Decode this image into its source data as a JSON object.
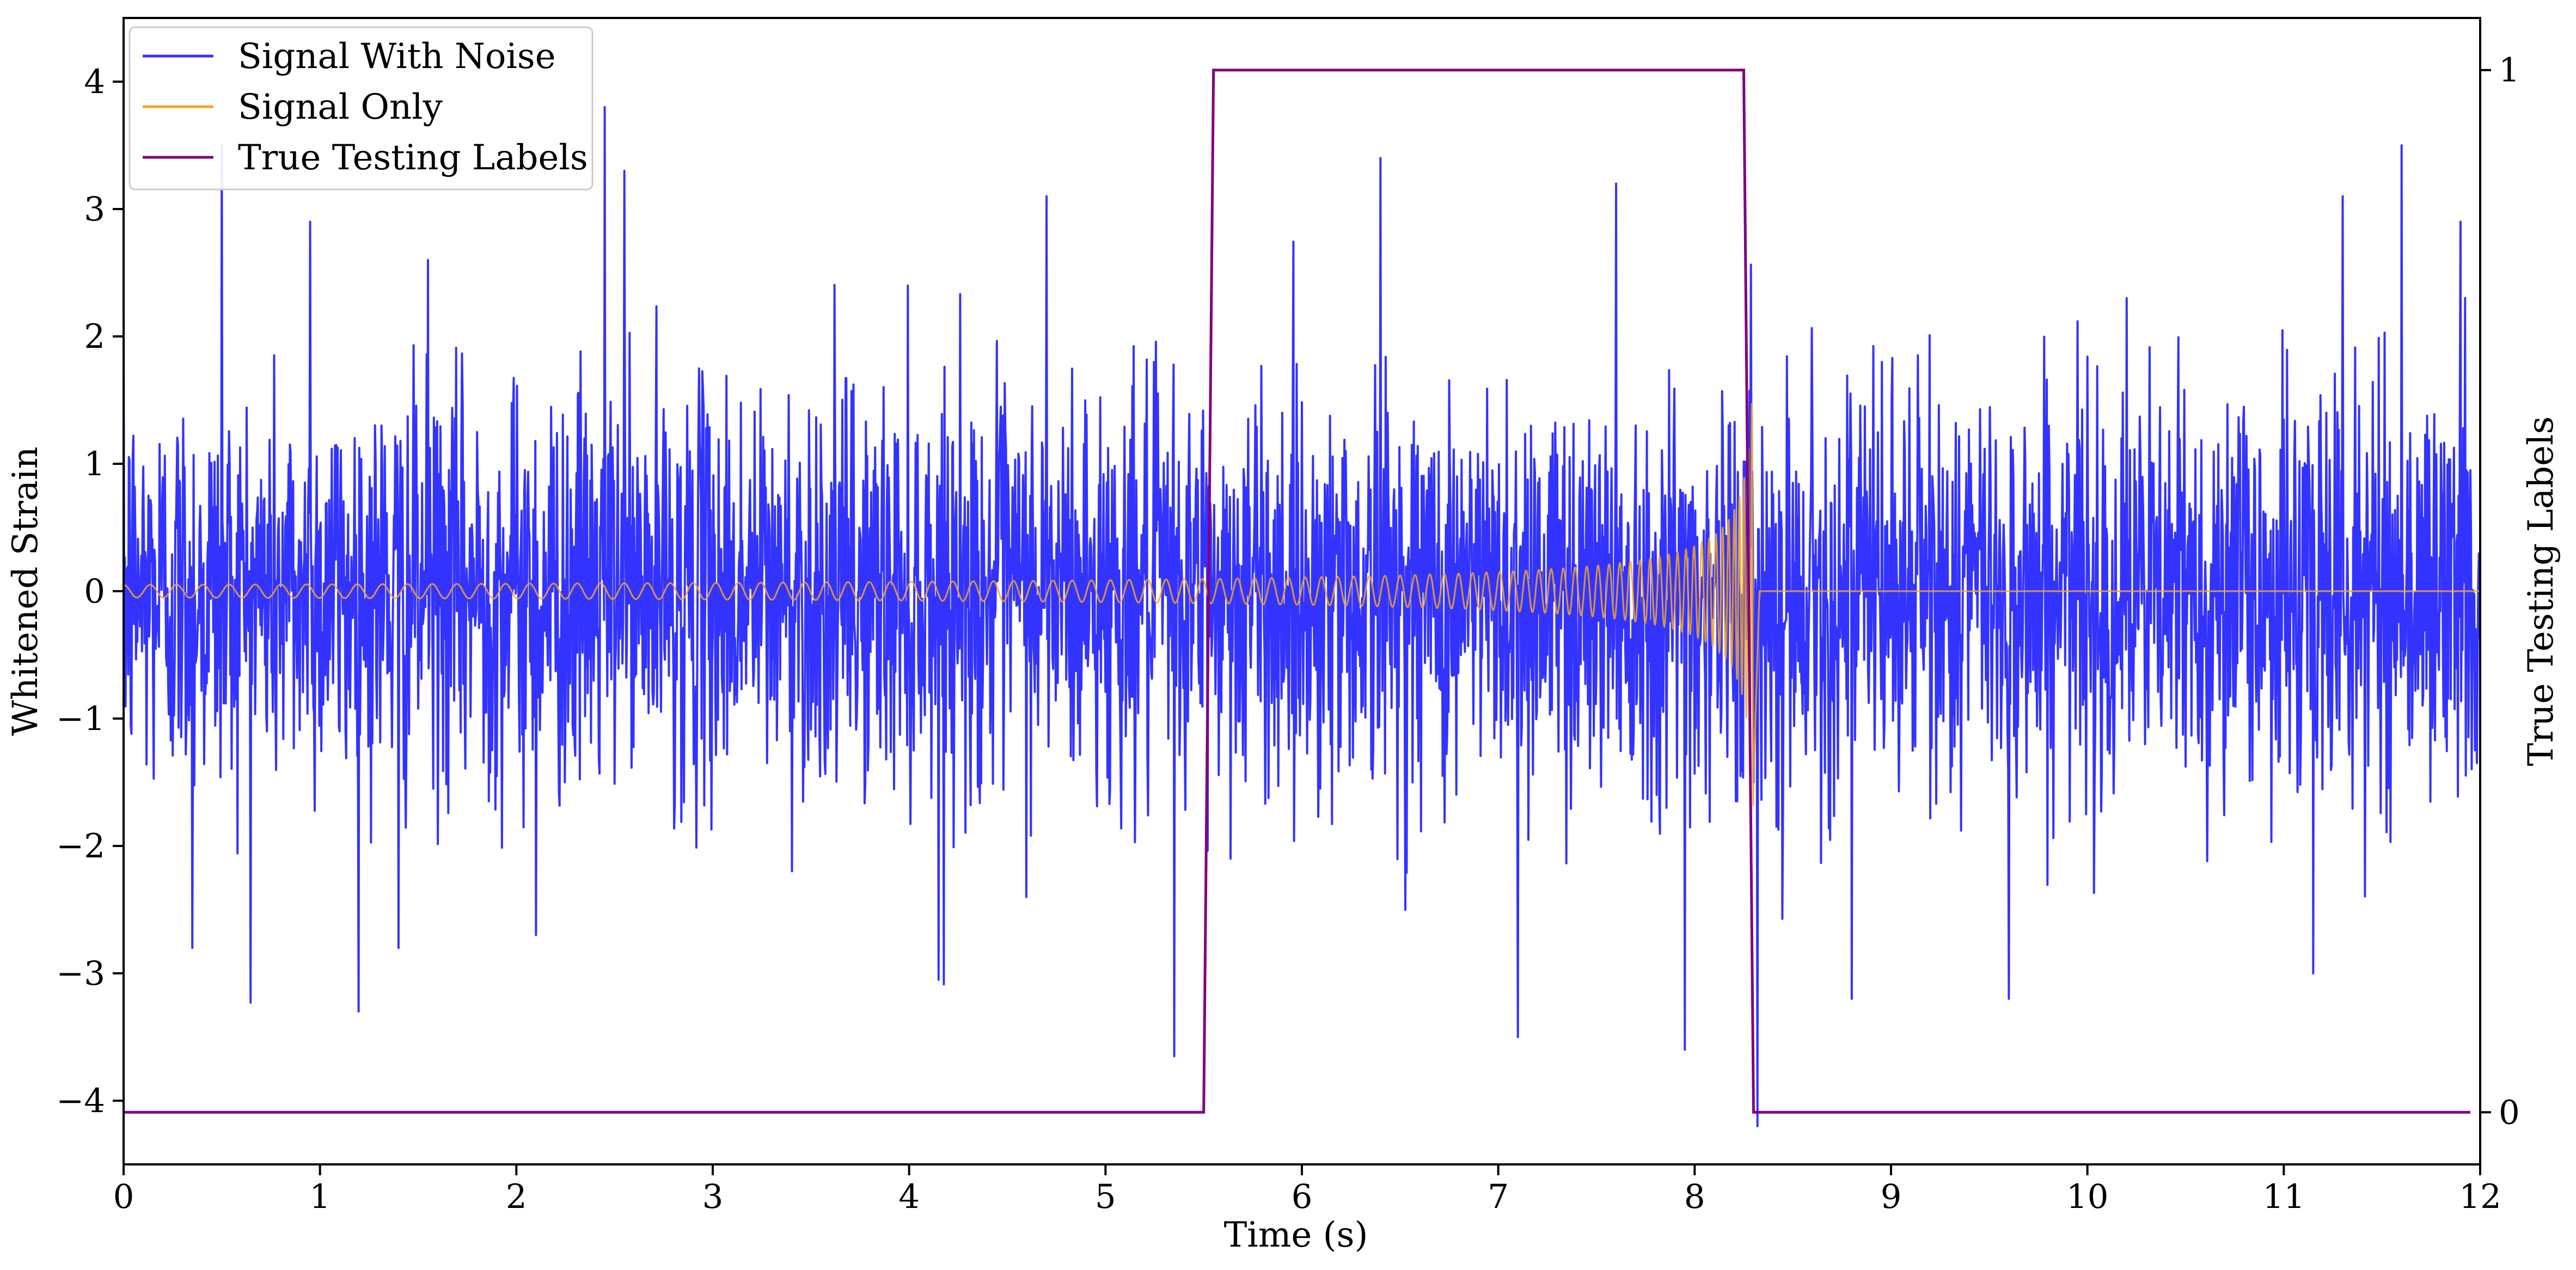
{
  "chart_data": {
    "type": "line",
    "title": "",
    "xlabel": "Time (s)",
    "ylabel": "Whitened Strain",
    "y2label": "True Testing Labels",
    "xlim": [
      0,
      12
    ],
    "ylim": [
      -4.5,
      4.5
    ],
    "y2lim": [
      -0.05,
      1.05
    ],
    "x_ticks": [
      "0",
      "1",
      "2",
      "3",
      "4",
      "5",
      "6",
      "7",
      "8",
      "9",
      "10",
      "11",
      "12"
    ],
    "y_ticks": [
      "4",
      "3",
      "2",
      "1",
      "0",
      "−1",
      "−2",
      "−3",
      "−4"
    ],
    "y_tick_values": [
      4,
      3,
      2,
      1,
      0,
      -1,
      -2,
      -3,
      -4
    ],
    "y2_ticks": [
      "1",
      "0"
    ],
    "y2_tick_values": [
      1,
      0
    ],
    "grid": false,
    "legend_position": "top-left",
    "series": [
      {
        "name": "Signal With Noise",
        "color": "#3333ff",
        "axis": "left",
        "kind": "noise",
        "noise_std": 0.8,
        "x_range": [
          0,
          12
        ],
        "peaks": [
          {
            "x": 0.5,
            "y": 3.5
          },
          {
            "x": 0.95,
            "y": 2.9
          },
          {
            "x": 1.55,
            "y": 2.6
          },
          {
            "x": 2.45,
            "y": 3.8
          },
          {
            "x": 2.55,
            "y": 3.3
          },
          {
            "x": 4.7,
            "y": 3.1
          },
          {
            "x": 6.4,
            "y": 3.4
          },
          {
            "x": 7.6,
            "y": 3.2
          },
          {
            "x": 11.6,
            "y": 3.5
          },
          {
            "x": 11.3,
            "y": 3.1
          },
          {
            "x": 11.9,
            "y": 2.9
          },
          {
            "x": 0.35,
            "y": -2.8
          },
          {
            "x": 1.4,
            "y": -2.8
          },
          {
            "x": 2.1,
            "y": -2.7
          },
          {
            "x": 4.15,
            "y": -3.05
          },
          {
            "x": 5.35,
            "y": -3.65
          },
          {
            "x": 7.1,
            "y": -3.5
          },
          {
            "x": 7.95,
            "y": -3.6
          },
          {
            "x": 8.32,
            "y": -4.2
          },
          {
            "x": 9.6,
            "y": -3.2
          },
          {
            "x": 8.8,
            "y": -3.2
          },
          {
            "x": 11.15,
            "y": -3.0
          }
        ]
      },
      {
        "name": "Signal Only",
        "color": "#f5a623",
        "axis": "left",
        "kind": "chirp",
        "x_range": [
          0,
          8.3
        ],
        "amplitude_start": 0.05,
        "amplitude_peak": 1.7,
        "merger_time": 8.3,
        "after_merger_value": 0.0
      },
      {
        "name": "True Testing Labels",
        "color": "#800080",
        "axis": "right",
        "kind": "step",
        "x": [
          0,
          5.5,
          5.55,
          8.25,
          8.3,
          11.95
        ],
        "y": [
          0,
          0,
          1,
          1,
          0,
          0
        ]
      }
    ]
  }
}
